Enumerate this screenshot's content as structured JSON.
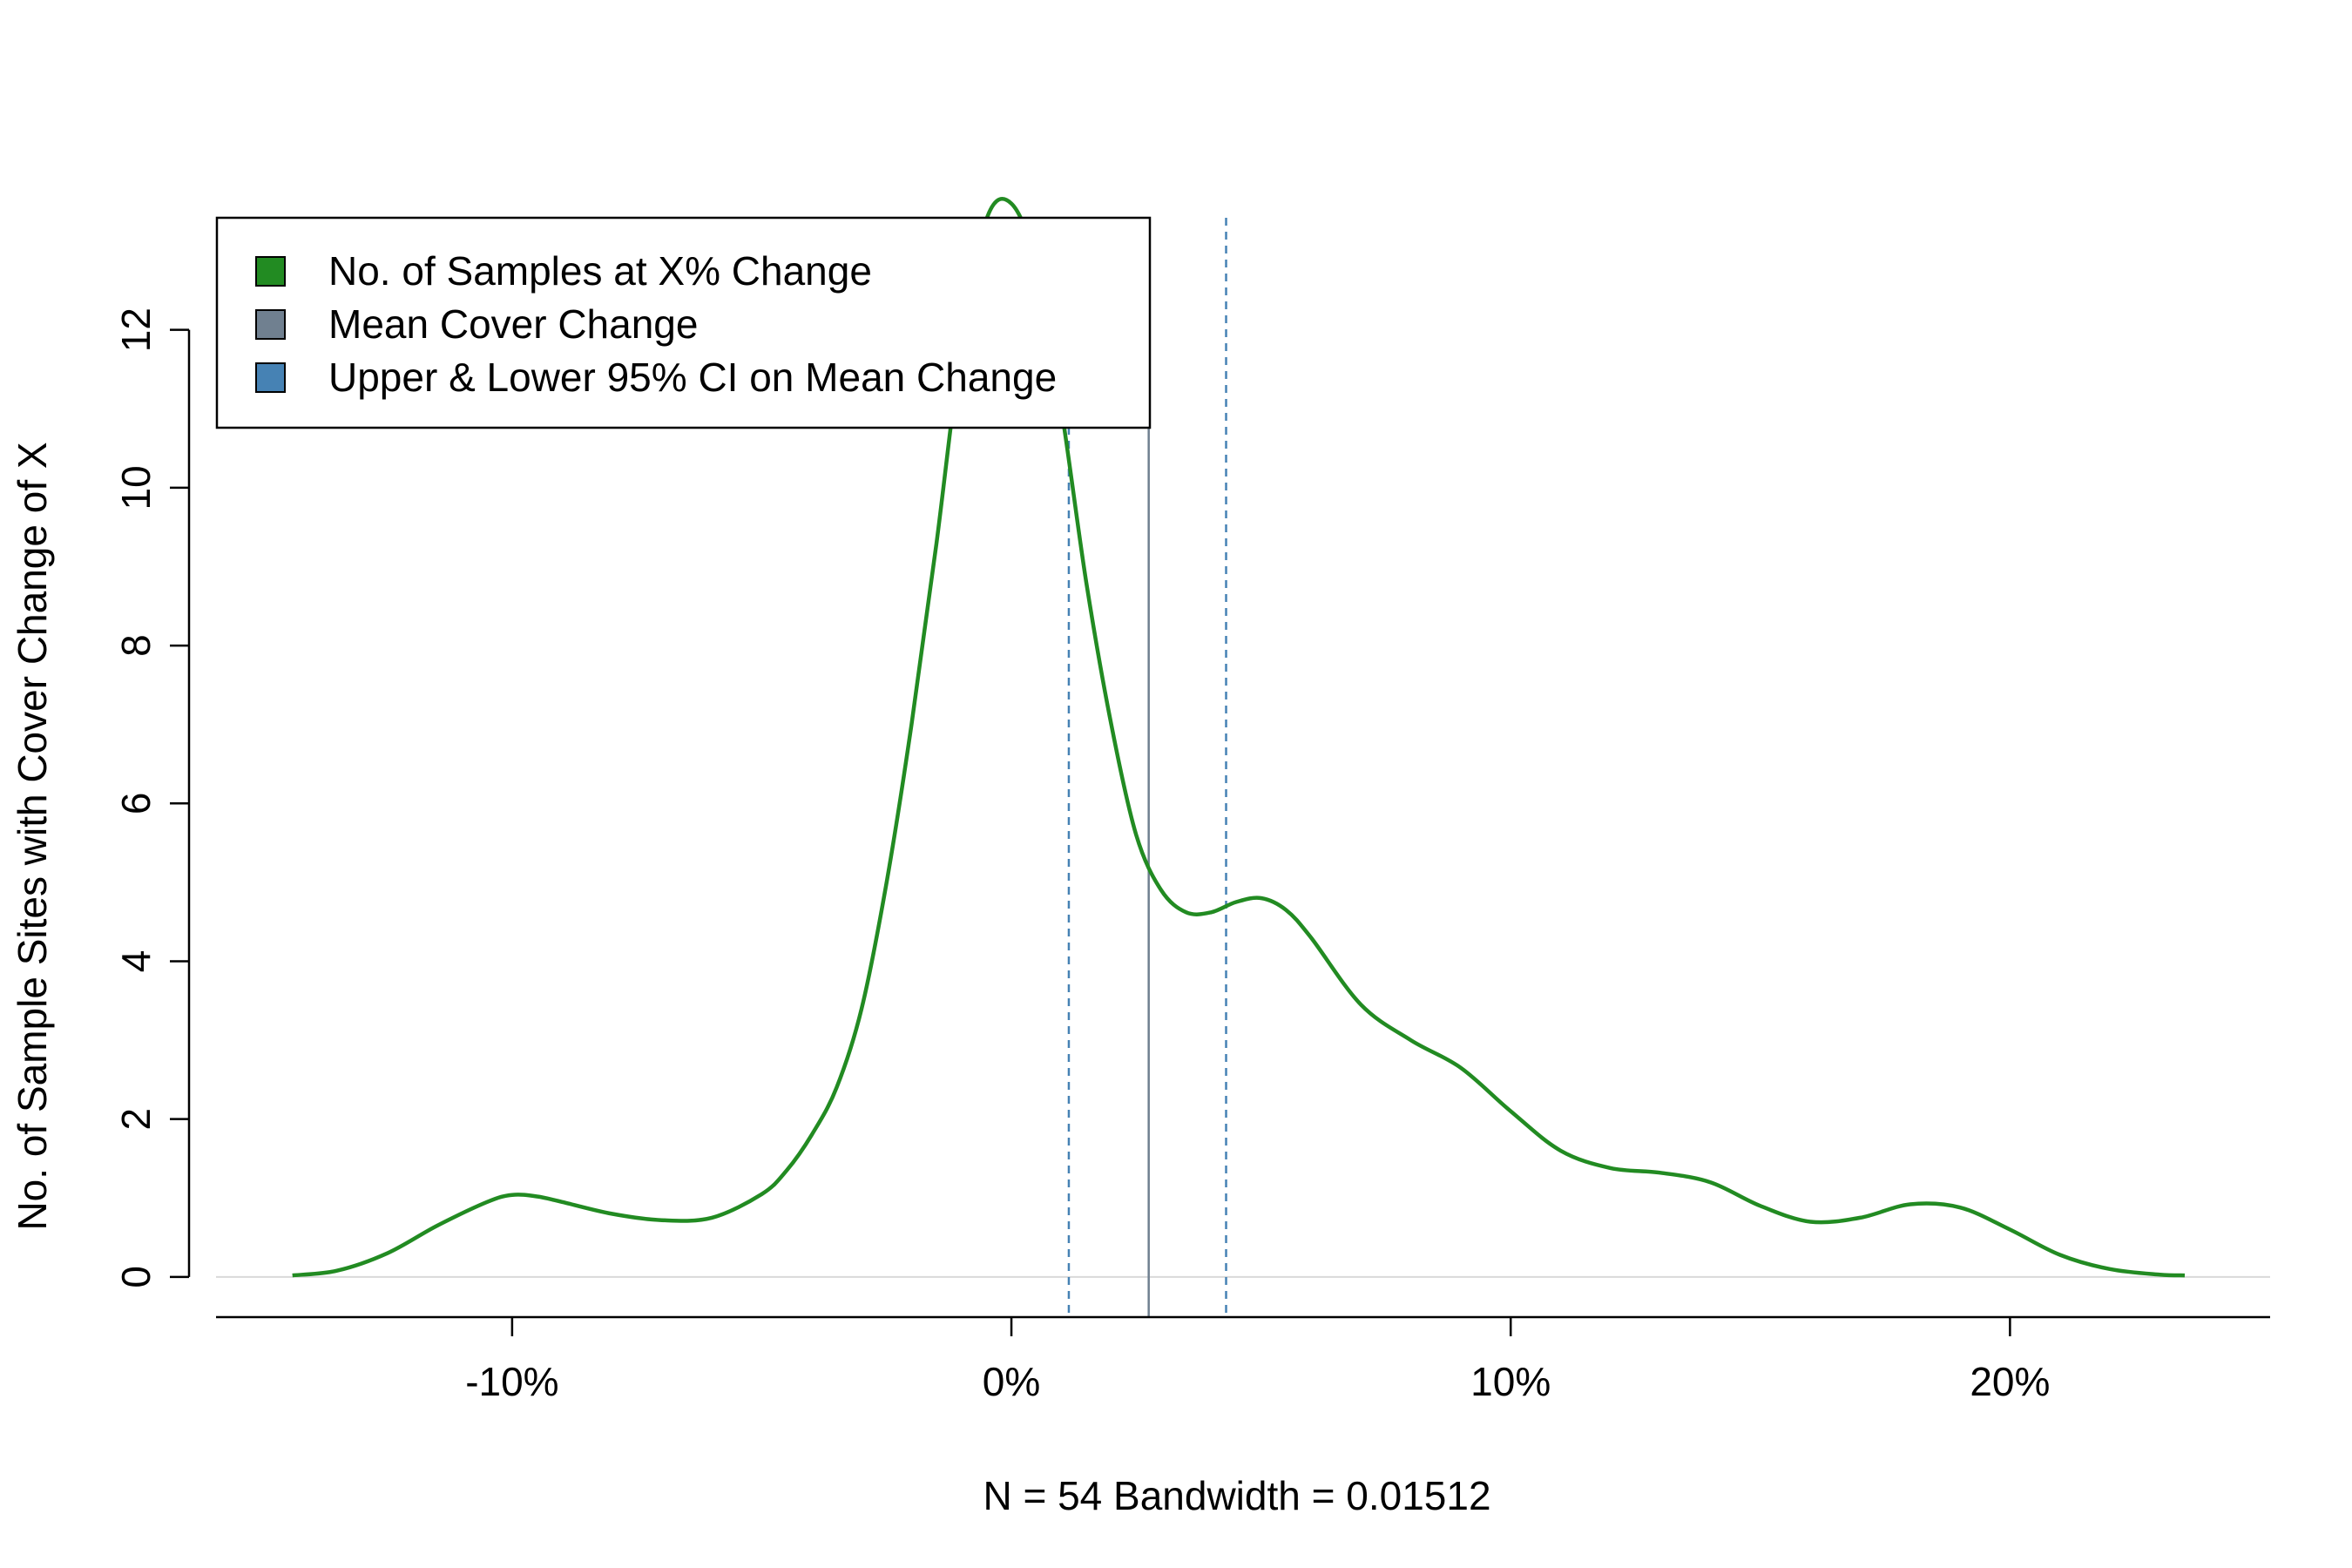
{
  "chart_data": {
    "type": "line",
    "title": "",
    "xlabel": "N = 54   Bandwidth = 0.01512",
    "ylabel": "No. of Sample Sites with Cover Change of X",
    "xlim": [
      -15.93,
      25.21
    ],
    "ylim": [
      -0.52,
      13.42
    ],
    "x_unit": "percent",
    "x_ticks": [
      -10,
      0,
      10,
      20
    ],
    "x_tick_labels": [
      "-10%",
      "0%",
      "10%",
      "20%"
    ],
    "y_ticks": [
      0,
      2,
      4,
      6,
      8,
      10,
      12
    ],
    "y_tick_labels": [
      "0",
      "2",
      "4",
      "6",
      "8",
      "10",
      "12"
    ],
    "grid": false,
    "legend_position": "top-left",
    "zero_line": true,
    "series": [
      {
        "name": "No. of Samples at X% Change",
        "color": "#228b22",
        "x": [
          -14.4,
          -13.5,
          -12.5,
          -11.5,
          -10.5,
          -10,
          -9.5,
          -9,
          -8,
          -7,
          -6,
          -5,
          -4.5,
          -4,
          -3.5,
          -3,
          -2.5,
          -2,
          -1.5,
          -1.0,
          -0.5,
          0,
          0.5,
          1.0,
          1.5,
          2.0,
          2.5,
          3.0,
          3.5,
          4.0,
          4.5,
          5.0,
          5.5,
          6,
          7,
          8,
          9,
          10,
          11,
          12,
          13,
          14,
          15,
          16,
          17,
          18,
          19,
          20,
          21,
          22,
          23,
          23.5
        ],
        "y": [
          0.02,
          0.08,
          0.3,
          0.65,
          0.95,
          1.04,
          1.02,
          0.95,
          0.8,
          0.72,
          0.75,
          1.05,
          1.35,
          1.8,
          2.4,
          3.4,
          5.0,
          7.0,
          9.3,
          11.8,
          13.4,
          13.6,
          12.8,
          11.0,
          8.8,
          7.0,
          5.6,
          4.9,
          4.62,
          4.62,
          4.75,
          4.8,
          4.65,
          4.3,
          3.45,
          3.0,
          2.65,
          2.1,
          1.6,
          1.38,
          1.32,
          1.2,
          0.9,
          0.7,
          0.75,
          0.92,
          0.88,
          0.6,
          0.28,
          0.1,
          0.03,
          0.02
        ]
      },
      {
        "name": "Mean Cover Change",
        "color": "#708090",
        "x": [
          2.75
        ]
      },
      {
        "name": "Upper & Lower 95% CI on Mean Change",
        "color": "#4682b4",
        "x": [
          1.15,
          4.3
        ]
      }
    ]
  }
}
